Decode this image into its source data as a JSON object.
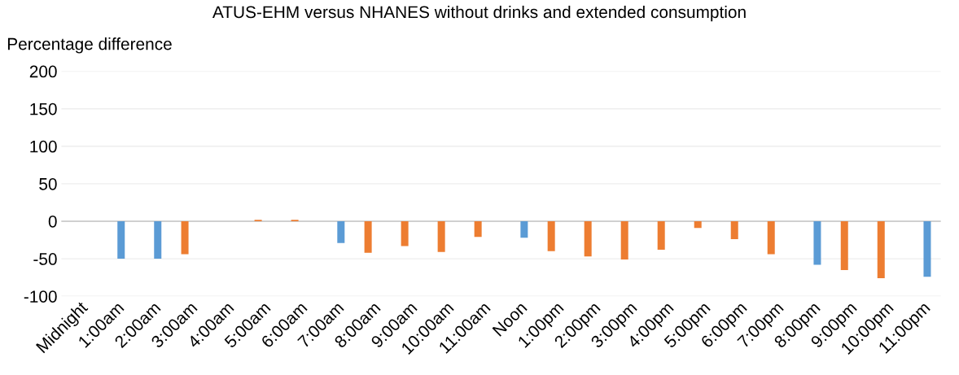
{
  "chart_data": {
    "type": "bar",
    "title": "ATUS-EHM versus NHANES without drinks and extended consumption",
    "ylabel": "Percentage difference",
    "categories": [
      "Midnight",
      "1:00am",
      "2:00am",
      "3:00am",
      "4:00am",
      "5:00am",
      "6:00am",
      "7:00am",
      "8:00am",
      "9:00am",
      "10:00am",
      "11:00am",
      "Noon",
      "1:00pm",
      "2:00pm",
      "3:00pm",
      "4:00pm",
      "5:00pm",
      "6:00pm",
      "7:00pm",
      "8:00pm",
      "9:00pm",
      "10:00pm",
      "11:00pm"
    ],
    "series": [
      {
        "color": "#ed7d31",
        "values": [
          null,
          null,
          null,
          -44,
          null,
          2,
          2,
          null,
          -42,
          -33,
          -41,
          -21,
          null,
          -40,
          -47,
          -51,
          -38,
          -9,
          -24,
          -44,
          null,
          -65,
          -76,
          null
        ]
      },
      {
        "color": "#5b9bd5",
        "values": [
          null,
          -50,
          -50,
          null,
          null,
          null,
          null,
          -29,
          null,
          null,
          null,
          null,
          -22,
          null,
          null,
          null,
          null,
          null,
          null,
          null,
          -58,
          null,
          null,
          -74
        ]
      }
    ],
    "ylim": [
      -100,
      200
    ],
    "yticks": [
      -100,
      -50,
      0,
      50,
      100,
      150,
      200
    ],
    "grid": "y",
    "legend": false
  }
}
